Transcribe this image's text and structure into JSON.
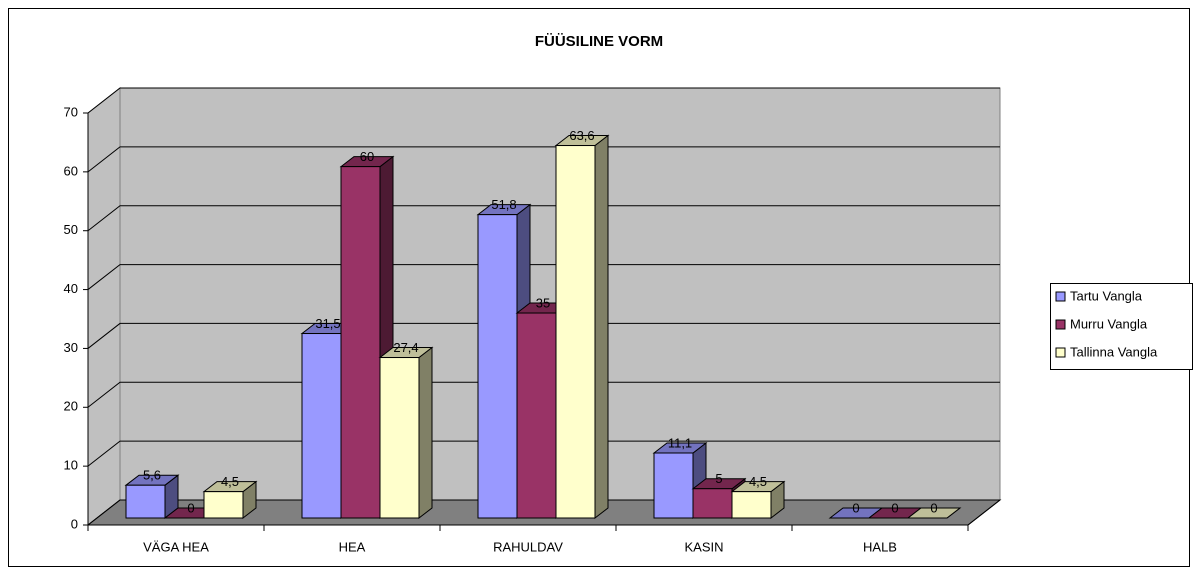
{
  "chart_data": {
    "type": "bar3d",
    "title": "FÜÜSILINE VORM",
    "categories": [
      "VÄGA HEA",
      "HEA",
      "RAHULDAV",
      "KASIN",
      "HALB"
    ],
    "series": [
      {
        "name": "Tartu Vangla",
        "color": "#9999ff",
        "values": [
          5.6,
          31.5,
          51.8,
          11.1,
          0
        ],
        "value_labels": [
          "5,6",
          "31,5",
          "51,8",
          "11,1",
          "0"
        ]
      },
      {
        "name": "Murru Vangla",
        "color": "#993366",
        "values": [
          0,
          60,
          35,
          5,
          0
        ]
      },
      {
        "name": "Tallinna Vangla",
        "color": "#ffffcc",
        "values": [
          4.5,
          27.4,
          63.6,
          4.5,
          0
        ],
        "value_labels": [
          "4,5",
          "27,4",
          "63,6",
          "4,5",
          "0"
        ]
      }
    ],
    "ylim": [
      0,
      70
    ],
    "yticks": [
      0,
      10,
      20,
      30,
      40,
      50,
      60,
      70
    ],
    "grid": true,
    "legend": "right"
  }
}
